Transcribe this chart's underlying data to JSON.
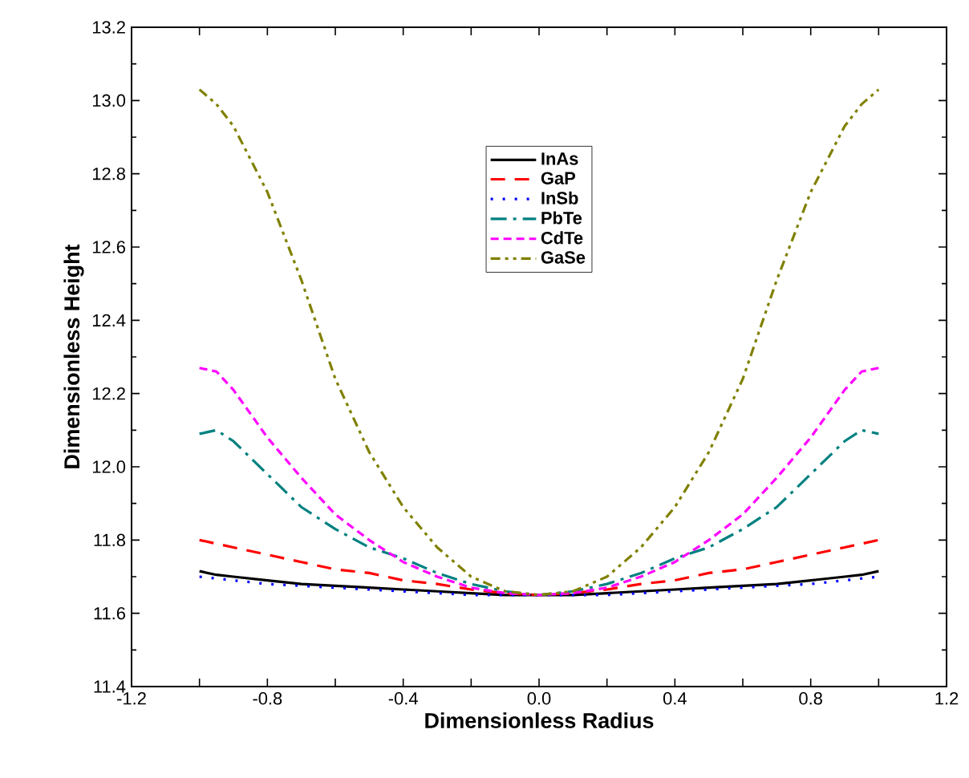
{
  "chart_data": {
    "type": "line",
    "xlabel": "Dimensionless Radius",
    "ylabel": "Dimensionless Height",
    "x": [
      -1,
      -0.95,
      -0.9,
      -0.8,
      -0.7,
      -0.6,
      -0.5,
      -0.4,
      -0.3,
      -0.2,
      -0.1,
      0,
      0.1,
      0.2,
      0.3,
      0.4,
      0.5,
      0.6,
      0.7,
      0.8,
      0.9,
      0.95,
      1
    ],
    "series": [
      {
        "name": "InAs",
        "color": "#000000",
        "line_style": "solid",
        "values": [
          11.715,
          11.705,
          11.7,
          11.69,
          11.68,
          11.675,
          11.67,
          11.665,
          11.66,
          11.655,
          11.65,
          11.65,
          11.65,
          11.655,
          11.66,
          11.665,
          11.67,
          11.675,
          11.68,
          11.69,
          11.7,
          11.705,
          11.715
        ]
      },
      {
        "name": "GaP",
        "color": "#ff0000",
        "line_style": "dashed",
        "values": [
          11.8,
          11.79,
          11.78,
          11.76,
          11.74,
          11.72,
          11.71,
          11.69,
          11.68,
          11.665,
          11.655,
          11.65,
          11.655,
          11.665,
          11.68,
          11.69,
          11.71,
          11.72,
          11.74,
          11.76,
          11.78,
          11.79,
          11.8
        ]
      },
      {
        "name": "InSb",
        "color": "#0000ff",
        "line_style": "dotted",
        "values": [
          11.7,
          11.695,
          11.69,
          11.68,
          11.675,
          11.67,
          11.665,
          11.66,
          11.655,
          11.65,
          11.65,
          11.65,
          11.65,
          11.65,
          11.655,
          11.66,
          11.665,
          11.67,
          11.675,
          11.68,
          11.69,
          11.695,
          11.7
        ]
      },
      {
        "name": "PbTe",
        "color": "#008080",
        "line_style": "dashdot",
        "values": [
          12.09,
          12.1,
          12.07,
          11.98,
          11.89,
          11.83,
          11.78,
          11.75,
          11.71,
          11.68,
          11.66,
          11.65,
          11.66,
          11.68,
          11.71,
          11.75,
          11.78,
          11.83,
          11.89,
          11.98,
          12.07,
          12.1,
          12.09
        ]
      },
      {
        "name": "CdTe",
        "color": "#ff00ff",
        "line_style": "shortdash",
        "values": [
          12.27,
          12.26,
          12.21,
          12.08,
          11.97,
          11.87,
          11.8,
          11.74,
          11.7,
          11.67,
          11.655,
          11.65,
          11.655,
          11.67,
          11.7,
          11.74,
          11.8,
          11.87,
          11.97,
          12.08,
          12.21,
          12.26,
          12.27
        ]
      },
      {
        "name": "GaSe",
        "color": "#808000",
        "line_style": "dashdotdot",
        "values": [
          13.03,
          12.99,
          12.93,
          12.75,
          12.51,
          12.24,
          12.04,
          11.89,
          11.78,
          11.7,
          11.66,
          11.65,
          11.66,
          11.7,
          11.78,
          11.89,
          12.04,
          12.24,
          12.51,
          12.75,
          12.93,
          12.99,
          13.03
        ]
      }
    ],
    "xlim": [
      -1.2,
      1.2
    ],
    "ylim": [
      11.4,
      13.2
    ],
    "xticks": [
      {
        "value": -1.2,
        "label": "-1.2"
      },
      {
        "value": -1.0,
        "label": null
      },
      {
        "value": -0.8,
        "label": "-0.8"
      },
      {
        "value": -0.6,
        "label": null
      },
      {
        "value": -0.4,
        "label": "-0.4"
      },
      {
        "value": -0.2,
        "label": null
      },
      {
        "value": 0,
        "label": "0.0"
      },
      {
        "value": 0.2,
        "label": null
      },
      {
        "value": 0.4,
        "label": "0.4"
      },
      {
        "value": 0.6,
        "label": null
      },
      {
        "value": 0.8,
        "label": "0.8"
      },
      {
        "value": 1.0,
        "label": null
      },
      {
        "value": 1.2,
        "label": "1.2"
      }
    ],
    "yticks": [
      {
        "value": 11.4,
        "label": "11.4"
      },
      {
        "value": 11.6,
        "label": "11.6"
      },
      {
        "value": 11.8,
        "label": "11.8"
      },
      {
        "value": 12.0,
        "label": "12.0"
      },
      {
        "value": 12.2,
        "label": "12.2"
      },
      {
        "value": 12.4,
        "label": "12.4"
      },
      {
        "value": 12.6,
        "label": "12.6"
      },
      {
        "value": 12.8,
        "label": "12.8"
      },
      {
        "value": 13.0,
        "label": "13.0"
      },
      {
        "value": 13.2,
        "label": "13.2"
      }
    ],
    "grid": false,
    "legend": "top",
    "marker": "none"
  }
}
